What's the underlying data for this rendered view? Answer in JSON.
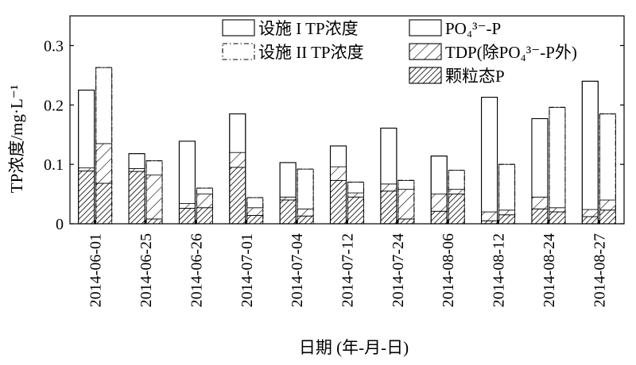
{
  "chart_data": {
    "type": "bar",
    "title": "",
    "xlabel": "日期 (年-月-日)",
    "ylabel": "TP浓度/mg·L⁻¹",
    "ylim": [
      0,
      0.35
    ],
    "yticks": [
      "0",
      "0.1",
      "0.2",
      "0.3"
    ],
    "ytick_values": [
      0,
      0.1,
      0.2,
      0.3
    ],
    "categories": [
      "2014-06-01",
      "2014-06-25",
      "2014-06-26",
      "2014-07-01",
      "2014-07-04",
      "2014-07-12",
      "2014-07-24",
      "2014-08-06",
      "2014-08-12",
      "2014-08-24",
      "2014-08-27"
    ],
    "facilities": [
      {
        "name": "设施 I TP浓度",
        "outline": "solid",
        "particulate": [
          0.089,
          0.088,
          0.026,
          0.095,
          0.04,
          0.073,
          0.055,
          0.021,
          0.005,
          0.025,
          0.012
        ],
        "tdp_non_po4": [
          0.005,
          0.005,
          0.008,
          0.025,
          0.005,
          0.023,
          0.012,
          0.029,
          0.015,
          0.02,
          0.012
        ],
        "po4": [
          0.131,
          0.025,
          0.105,
          0.065,
          0.058,
          0.035,
          0.094,
          0.064,
          0.193,
          0.132,
          0.216
        ],
        "total": [
          0.225,
          0.118,
          0.139,
          0.185,
          0.103,
          0.131,
          0.161,
          0.114,
          0.213,
          0.177,
          0.24
        ]
      },
      {
        "name": "设施 II TP浓度",
        "outline": "dashdot",
        "particulate": [
          0.068,
          0.008,
          0.027,
          0.014,
          0.013,
          0.045,
          0.008,
          0.05,
          0.015,
          0.02,
          0.023
        ],
        "tdp_non_po4": [
          0.067,
          0.074,
          0.023,
          0.013,
          0.012,
          0.007,
          0.05,
          0.008,
          0.008,
          0.007,
          0.017
        ],
        "po4": [
          0.128,
          0.024,
          0.01,
          0.017,
          0.067,
          0.018,
          0.015,
          0.032,
          0.077,
          0.169,
          0.145
        ],
        "total": [
          0.263,
          0.106,
          0.06,
          0.044,
          0.092,
          0.07,
          0.073,
          0.09,
          0.1,
          0.196,
          0.185
        ]
      }
    ],
    "legend": {
      "placement": "top",
      "entries": [
        {
          "label": "设施 I TP浓度",
          "style": "solid-outline"
        },
        {
          "label": "设施 II TP浓度",
          "style": "dashdot-outline"
        },
        {
          "label": "PO₄³⁻-P",
          "style": "blank"
        },
        {
          "label": "TDP(除PO₄³⁻-P外)",
          "style": "hatch-light"
        },
        {
          "label": "颗粒态P",
          "style": "hatch-dense"
        }
      ]
    },
    "grid": false
  }
}
